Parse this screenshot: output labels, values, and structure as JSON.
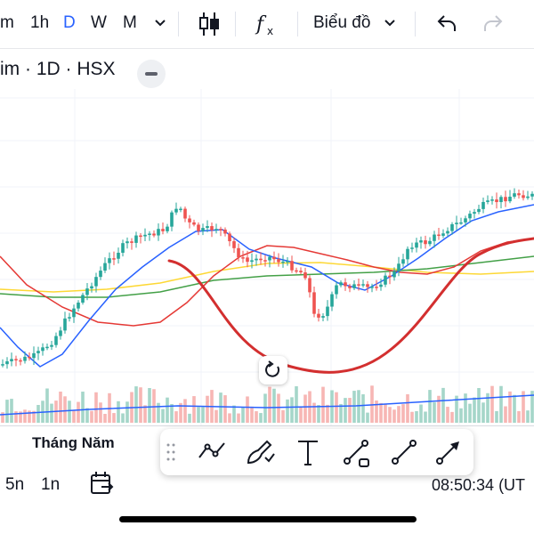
{
  "toolbar": {
    "intervals": [
      "m",
      "1h",
      "D",
      "W",
      "M"
    ],
    "active_interval": "D",
    "chart_type_label": "Biểu đồ",
    "accent": "#2962ff"
  },
  "symbol": {
    "title": "im · 1D · HSX"
  },
  "chart": {
    "up_color": "#26a69a",
    "down_color": "#ef5350",
    "ma_colors": [
      "#2962ff",
      "#e53935",
      "#43a047",
      "#fdd835"
    ],
    "drawn_curve_color": "#d32f2f"
  },
  "bottom": {
    "months_label": "Tháng Năm",
    "ranges": [
      "5n",
      "1n"
    ],
    "clock": "08:50:34 (UT"
  },
  "drawing_tools": [
    {
      "name": "trend-path-tool-icon"
    },
    {
      "name": "brush-tool-icon"
    },
    {
      "name": "text-tool-icon"
    },
    {
      "name": "trend-line-tool-icon"
    },
    {
      "name": "line-tool-icon"
    },
    {
      "name": "arrow-tool-icon"
    }
  ]
}
